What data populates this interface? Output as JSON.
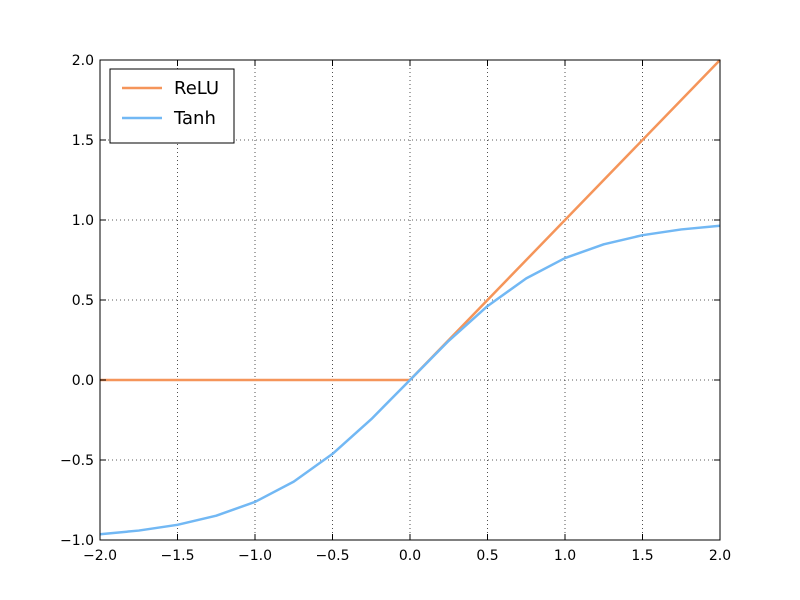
{
  "chart_data": {
    "type": "line",
    "title": "",
    "xlabel": "",
    "ylabel": "",
    "xlim": [
      -2.0,
      2.0
    ],
    "ylim": [
      -1.0,
      2.0
    ],
    "x_ticks": [
      -2.0,
      -1.5,
      -1.0,
      -0.5,
      0.0,
      0.5,
      1.0,
      1.5,
      2.0
    ],
    "x_tick_labels": [
      "−2.0",
      "−1.5",
      "−1.0",
      "−0.5",
      "0.0",
      "0.5",
      "1.0",
      "1.5",
      "2.0"
    ],
    "y_ticks": [
      -1.0,
      -0.5,
      0.0,
      0.5,
      1.0,
      1.5,
      2.0
    ],
    "y_tick_labels": [
      "−1.0",
      "−0.5",
      "0.0",
      "0.5",
      "1.0",
      "1.5",
      "2.0"
    ],
    "grid": true,
    "legend_position": "top-left",
    "series": [
      {
        "name": "ReLU",
        "color": "#f5955a",
        "x": [
          -2.0,
          0.0,
          2.0
        ],
        "y": [
          0.0,
          0.0,
          2.0
        ]
      },
      {
        "name": "Tanh",
        "color": "#72b8f4",
        "x": [
          -2.0,
          -1.75,
          -1.5,
          -1.25,
          -1.0,
          -0.75,
          -0.5,
          -0.25,
          0.0,
          0.25,
          0.5,
          0.75,
          1.0,
          1.25,
          1.5,
          1.75,
          2.0
        ],
        "y": [
          -0.964,
          -0.941,
          -0.905,
          -0.848,
          -0.762,
          -0.635,
          -0.462,
          -0.245,
          0.0,
          0.245,
          0.462,
          0.635,
          0.762,
          0.848,
          0.905,
          0.941,
          0.964
        ]
      }
    ]
  }
}
